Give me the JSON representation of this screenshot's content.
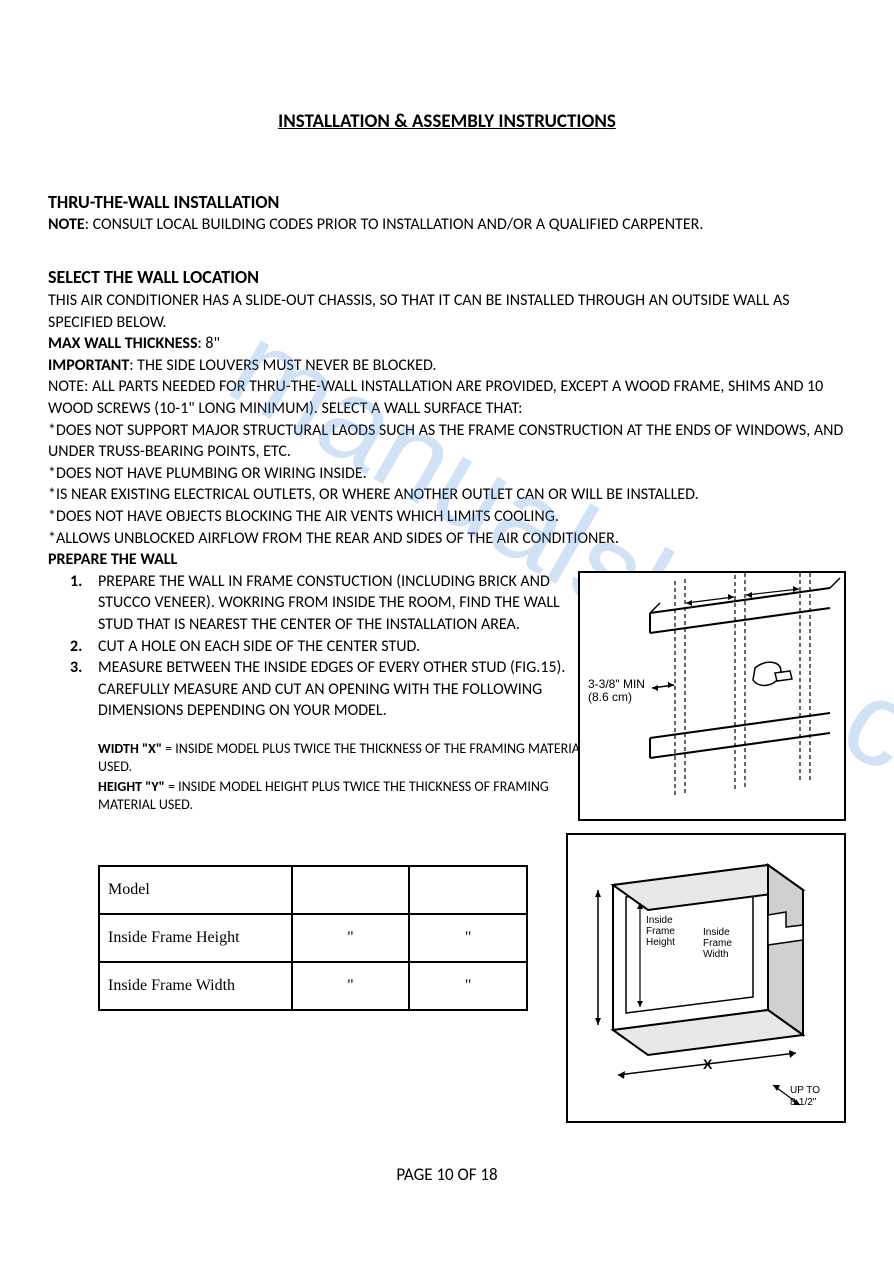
{
  "title": "INSTALLATION & ASSEMBLY INSTRUCTIONS",
  "section1": {
    "heading": "THRU-THE-WALL INSTALLATION",
    "note_label": "NOTE",
    "note_text": ": CONSULT LOCAL BUILDING CODES PRIOR TO INSTALLATION AND/OR A QUALIFIED CARPENTER."
  },
  "section2": {
    "heading": "SELECT THE WALL LOCATION",
    "intro": "THIS AIR CONDITIONER HAS A SLIDE-OUT CHASSIS, SO THAT IT CAN BE INSTALLED THROUGH AN OUTSIDE WALL AS SPECIFIED BELOW.",
    "max_label": "MAX WALL THICKNESS",
    "max_value": ": 8\"",
    "important_label": "IMPORTANT",
    "important_text": ": THE SIDE LOUVERS MUST NEVER BE BLOCKED.",
    "note2": "NOTE: ALL PARTS NEEDED FOR THRU-THE-WALL INSTALLATION ARE PROVIDED, EXCEPT A WOOD FRAME, SHIMS AND 10 WOOD SCREWS (10-1\" LONG MINIMUM). SELECT A WALL SURFACE THAT:",
    "bullets": [
      "*DOES NOT SUPPORT MAJOR STRUCTURAL LAODS SUCH AS THE FRAME CONSTRUCTION AT THE ENDS OF WINDOWS, AND UNDER TRUSS-BEARING POINTS, ETC.",
      "*DOES NOT HAVE PLUMBING OR WIRING INSIDE.",
      "*IS NEAR EXISTING ELECTRICAL OUTLETS, OR WHERE ANOTHER OUTLET CAN OR WILL BE INSTALLED.",
      "*DOES NOT HAVE OBJECTS BLOCKING THE AIR VENTS WHICH LIMITS COOLING.",
      "*ALLOWS UNBLOCKED AIRFLOW FROM THE REAR AND SIDES OF THE AIR CONDITIONER."
    ]
  },
  "prepare": {
    "heading": "PREPARE THE WALL",
    "steps": [
      "PREPARE THE WALL IN FRAME CONSTUCTION (INCLUDING BRICK AND STUCCO VENEER). WOKRING FROM INSIDE THE ROOM, FIND THE WALL STUD THAT IS NEAREST THE CENTER OF THE INSTALLATION AREA.",
      "CUT A HOLE ON EACH SIDE OF THE CENTER STUD.",
      "MEASURE BETWEEN THE INSIDE EDGES OF EVERY OTHER STUD (FIG.15). CAREFULLY MEASURE AND CUT AN OPENING WITH THE FOLLOWING DIMENSIONS DEPENDING ON YOUR MODEL."
    ],
    "width_label": "WIDTH \"X\"",
    "width_text": " = INSIDE MODEL PLUS TWICE THE THICKNESS OF THE FRAMING MATERIAL USED.",
    "height_label": "HEIGHT \"Y\"",
    "height_text": " = INSIDE MODEL HEIGHT PLUS TWICE THE THICKNESS OF FRAMING MATERIAL USED."
  },
  "table": {
    "rows": [
      [
        "Model",
        "",
        ""
      ],
      [
        "Inside Frame Height",
        "\"",
        "\""
      ],
      [
        "Inside Frame Width",
        "\"",
        "\""
      ]
    ]
  },
  "fig1": {
    "dim_label1": "3-3/8\" MIN",
    "dim_label2": "(8.6 cm)"
  },
  "fig2": {
    "label_h1": "Inside",
    "label_h2": "Frame",
    "label_h3": "Height",
    "label_w1": "Inside",
    "label_w2": "Frame",
    "label_w3": "Width",
    "x_label": "X",
    "upto1": "UP TO",
    "upto2": "8-1/2\""
  },
  "footer": "PAGE 10 OF 18",
  "watermark": "manualshive.com"
}
